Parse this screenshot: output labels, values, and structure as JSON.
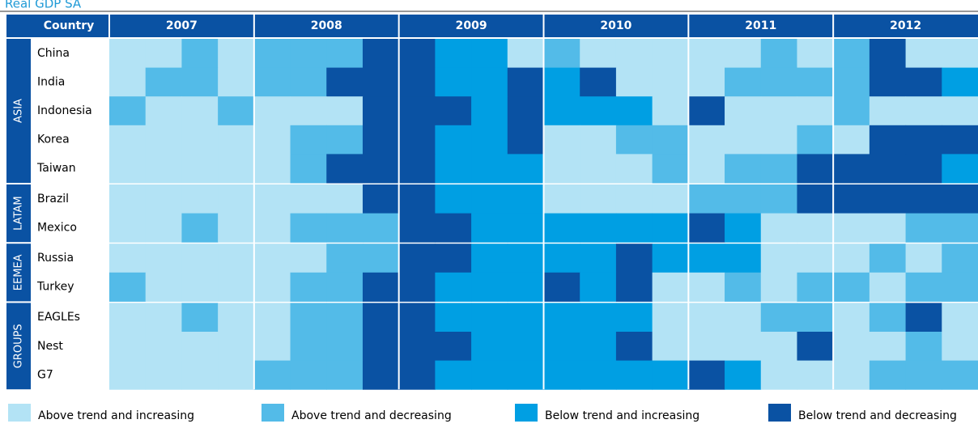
{
  "title": "Real GDP SA",
  "header": {
    "country": "Country",
    "years": [
      "2007",
      "2008",
      "2009",
      "2010",
      "2011",
      "2012"
    ]
  },
  "legend": [
    {
      "label": "Above trend and increasing",
      "color": "#b3e3f5"
    },
    {
      "label": "Above trend and decreasing",
      "color": "#53bbe8"
    },
    {
      "label": "Below trend and increasing",
      "color": "#009fe3"
    },
    {
      "label": "Below trend and decreasing",
      "color": "#0a52a3"
    }
  ],
  "groups": [
    {
      "name": "ASIA",
      "rows": [
        {
          "country": "China",
          "cells": [
            0,
            0,
            1,
            0,
            1,
            1,
            1,
            3,
            3,
            2,
            2,
            0,
            1,
            0,
            0,
            0,
            0,
            0,
            1,
            0,
            1,
            3,
            0,
            0
          ]
        },
        {
          "country": "India",
          "cells": [
            0,
            1,
            1,
            0,
            1,
            1,
            3,
            3,
            3,
            2,
            2,
            3,
            2,
            3,
            0,
            0,
            0,
            1,
            1,
            1,
            1,
            3,
            3,
            2
          ]
        },
        {
          "country": "Indonesia",
          "cells": [
            1,
            0,
            0,
            1,
            0,
            0,
            0,
            3,
            3,
            3,
            2,
            3,
            2,
            2,
            2,
            0,
            3,
            0,
            0,
            0,
            1,
            0,
            0,
            0
          ]
        },
        {
          "country": "Korea",
          "cells": [
            0,
            0,
            0,
            0,
            0,
            1,
            1,
            3,
            3,
            2,
            2,
            3,
            0,
            0,
            1,
            1,
            0,
            0,
            0,
            1,
            0,
            3,
            3,
            3
          ]
        },
        {
          "country": "Taiwan",
          "cells": [
            0,
            0,
            0,
            0,
            0,
            1,
            3,
            3,
            3,
            2,
            2,
            2,
            0,
            0,
            0,
            1,
            0,
            1,
            1,
            3,
            3,
            3,
            3,
            2
          ]
        }
      ]
    },
    {
      "name": "LATAM",
      "rows": [
        {
          "country": "Brazil",
          "cells": [
            0,
            0,
            0,
            0,
            0,
            0,
            0,
            3,
            3,
            2,
            2,
            2,
            0,
            0,
            0,
            0,
            1,
            1,
            1,
            3,
            3,
            3,
            3,
            3
          ]
        },
        {
          "country": "Mexico",
          "cells": [
            0,
            0,
            1,
            0,
            0,
            1,
            1,
            1,
            3,
            3,
            2,
            2,
            2,
            2,
            2,
            2,
            3,
            2,
            0,
            0,
            0,
            0,
            1,
            1
          ]
        }
      ]
    },
    {
      "name": "EEMEA",
      "rows": [
        {
          "country": "Russia",
          "cells": [
            0,
            0,
            0,
            0,
            0,
            0,
            1,
            1,
            3,
            3,
            2,
            2,
            2,
            2,
            3,
            2,
            2,
            2,
            0,
            0,
            0,
            1,
            0,
            1
          ]
        },
        {
          "country": "Turkey",
          "cells": [
            1,
            0,
            0,
            0,
            0,
            1,
            1,
            3,
            3,
            2,
            2,
            2,
            3,
            2,
            3,
            0,
            0,
            1,
            0,
            1,
            1,
            0,
            1,
            1
          ]
        }
      ]
    },
    {
      "name": "GROUPS",
      "rows": [
        {
          "country": "EAGLEs",
          "cells": [
            0,
            0,
            1,
            0,
            0,
            1,
            1,
            3,
            3,
            2,
            2,
            2,
            2,
            2,
            2,
            0,
            0,
            0,
            1,
            1,
            0,
            1,
            3,
            0
          ]
        },
        {
          "country": "Nest",
          "cells": [
            0,
            0,
            0,
            0,
            0,
            1,
            1,
            3,
            3,
            3,
            2,
            2,
            2,
            2,
            3,
            0,
            0,
            0,
            0,
            3,
            0,
            0,
            1,
            0
          ]
        },
        {
          "country": "G7",
          "cells": [
            0,
            0,
            0,
            0,
            1,
            1,
            1,
            3,
            3,
            2,
            2,
            2,
            2,
            2,
            2,
            2,
            3,
            2,
            0,
            0,
            0,
            1,
            1,
            1
          ]
        }
      ]
    }
  ]
}
